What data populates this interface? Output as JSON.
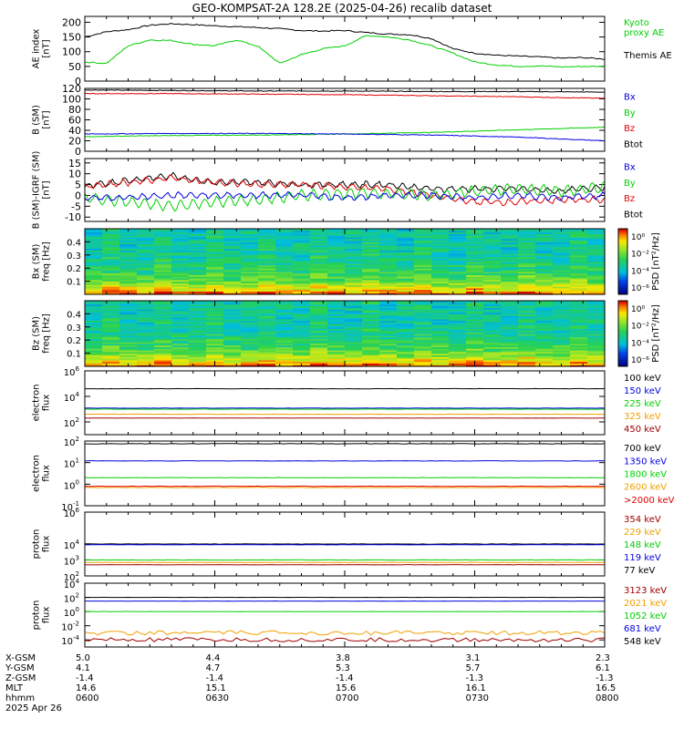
{
  "title": "GEO-KOMPSAT-2A 128.2E (2025-04-26) recalib dataset",
  "colors": {
    "black": "#000000",
    "blue": "#0000e0",
    "green": "#00d000",
    "red": "#e00000",
    "orange": "#f0a000",
    "darkred": "#a00000"
  },
  "chart_data": [
    {
      "type": "line",
      "name": "AE index",
      "ylabel": "AE index\n[nT]",
      "ylim": [
        0,
        220
      ],
      "yticks": [
        "200",
        "150",
        "100",
        "50",
        "0"
      ],
      "legend": [
        {
          "text": "Kyoto\nproxy AE",
          "color": "#00d000"
        },
        {
          "text": "Themis AE",
          "color": "#000000"
        }
      ],
      "x": [
        0,
        5,
        10,
        15,
        20,
        25,
        30,
        35,
        40,
        45,
        50,
        55,
        60,
        65,
        70,
        75,
        80,
        85,
        90,
        95,
        100,
        105,
        110,
        115,
        120
      ],
      "series": [
        {
          "name": "Themis AE",
          "color": "#000000",
          "values": [
            150,
            168,
            175,
            190,
            195,
            192,
            188,
            185,
            182,
            178,
            172,
            170,
            172,
            165,
            160,
            158,
            145,
            110,
            95,
            88,
            85,
            82,
            78,
            80,
            75
          ]
        },
        {
          "name": "Kyoto proxy AE",
          "color": "#00d000",
          "values": [
            65,
            60,
            120,
            140,
            138,
            125,
            120,
            140,
            118,
            60,
            90,
            110,
            120,
            155,
            150,
            140,
            120,
            95,
            65,
            55,
            50,
            52,
            48,
            50,
            50
          ]
        }
      ]
    },
    {
      "type": "line",
      "name": "B (SM)",
      "ylabel": "B (SM)\n[nT]",
      "ylim": [
        0,
        120
      ],
      "yticks": [
        "120",
        "100",
        "80",
        "60",
        "40",
        "20",
        "0"
      ],
      "legend": [
        {
          "text": "Bx",
          "color": "#0000e0"
        },
        {
          "text": "By",
          "color": "#00d000"
        },
        {
          "text": "Bz",
          "color": "#e00000"
        },
        {
          "text": "Btot",
          "color": "#000000"
        }
      ],
      "x": [
        0,
        20,
        40,
        60,
        80,
        100,
        120
      ],
      "series": [
        {
          "name": "Btot",
          "color": "#000000",
          "values": [
            117,
            116,
            115,
            115,
            114,
            114,
            113
          ]
        },
        {
          "name": "Bz",
          "color": "#e00000",
          "values": [
            110,
            110,
            109,
            108,
            106,
            104,
            101
          ]
        },
        {
          "name": "By",
          "color": "#00d000",
          "values": [
            28,
            30,
            31,
            33,
            36,
            41,
            46
          ]
        },
        {
          "name": "Bx",
          "color": "#0000e0",
          "values": [
            33,
            34,
            34,
            33,
            31,
            27,
            20
          ]
        }
      ]
    },
    {
      "type": "line",
      "name": "B (SM) - IGRF (SM)",
      "ylabel": "B (SM)-IGRF (SM)\n[nT]",
      "ylim": [
        -12,
        17
      ],
      "yticks": [
        "15",
        "10",
        "5",
        "0",
        "-5",
        "-10"
      ],
      "legend": [
        {
          "text": "Bx",
          "color": "#0000e0"
        },
        {
          "text": "By",
          "color": "#00d000"
        },
        {
          "text": "Bz",
          "color": "#e00000"
        },
        {
          "text": "Btot",
          "color": "#000000"
        }
      ],
      "x": [
        0,
        10,
        20,
        30,
        40,
        50,
        60,
        70,
        80,
        90,
        100,
        110,
        120
      ],
      "series": [
        {
          "name": "Btot",
          "color": "#000000",
          "values": [
            4,
            7,
            9,
            6,
            6,
            5,
            5,
            5,
            3,
            3,
            3,
            2,
            4
          ]
        },
        {
          "name": "Bz",
          "color": "#e00000",
          "values": [
            4,
            6,
            8,
            6,
            5,
            5,
            4,
            3,
            0,
            -3,
            -3,
            -2,
            -2
          ]
        },
        {
          "name": "By",
          "color": "#00d000",
          "values": [
            -1,
            -3,
            -5,
            -3,
            -2,
            0,
            1,
            1,
            0,
            2,
            3,
            2,
            4
          ]
        },
        {
          "name": "Bx",
          "color": "#0000e0",
          "values": [
            -1,
            -1,
            0,
            0,
            0,
            0,
            -1,
            0,
            0,
            -1,
            0,
            -1,
            0
          ]
        }
      ]
    },
    {
      "type": "heatmap",
      "name": "Bx (SM) PSD",
      "ylabel": "Bx (SM)\nfreq [Hz]",
      "ylim": [
        0,
        0.5
      ],
      "yticks": [
        "0.4",
        "0.3",
        "0.2",
        "0.1"
      ],
      "colorbar": {
        "label": "PSD [nT²/Hz]",
        "ticks": [
          "10⁰",
          "10⁻²",
          "10⁻⁴",
          "10⁻⁶"
        ]
      }
    },
    {
      "type": "heatmap",
      "name": "Bz (SM) PSD",
      "ylabel": "Bz (SM)\nfreq [Hz]",
      "ylim": [
        0,
        0.5
      ],
      "yticks": [
        "0.4",
        "0.3",
        "0.2",
        "0.1"
      ],
      "colorbar": {
        "label": "PSD [nT²/Hz]",
        "ticks": [
          "10⁰",
          "10⁻²",
          "10⁻⁴",
          "10⁻⁶"
        ]
      }
    },
    {
      "type": "line",
      "name": "electron flux low",
      "log": true,
      "ylabel": "electron\nflux",
      "ylim_exp": [
        1,
        6
      ],
      "yticks": [
        {
          "b": "10",
          "e": "6"
        },
        {
          "b": "10",
          "e": "4"
        },
        {
          "b": "10",
          "e": "2"
        }
      ],
      "legend": [
        {
          "text": "100 keV",
          "color": "#000000"
        },
        {
          "text": "150 keV",
          "color": "#0000e0"
        },
        {
          "text": "225 keV",
          "color": "#00d000"
        },
        {
          "text": "325 keV",
          "color": "#f0a000"
        },
        {
          "text": "450 keV",
          "color": "#a00000"
        }
      ],
      "series": [
        {
          "name": "100 keV",
          "color": "#000000",
          "values": [
            40000,
            40000
          ]
        },
        {
          "name": "150 keV",
          "color": "#0000e0",
          "values": [
            1200,
            1200
          ]
        },
        {
          "name": "225 keV",
          "color": "#00d000",
          "values": [
            1000,
            1000
          ]
        },
        {
          "name": "325 keV",
          "color": "#f0a000",
          "values": [
            400,
            400
          ]
        },
        {
          "name": "450 keV",
          "color": "#a00000",
          "values": [
            200,
            200
          ]
        }
      ]
    },
    {
      "type": "line",
      "name": "electron flux high",
      "log": true,
      "ylabel": "electron\nflux",
      "ylim_exp": [
        -1,
        2
      ],
      "yticks": [
        {
          "b": "10",
          "e": "2"
        },
        {
          "b": "10",
          "e": "1"
        },
        {
          "b": "10",
          "e": "0"
        },
        {
          "b": "10",
          "e": "-1"
        }
      ],
      "legend": [
        {
          "text": "700 keV",
          "color": "#000000"
        },
        {
          "text": "1350 keV",
          "color": "#0000e0"
        },
        {
          "text": "1800 keV",
          "color": "#00d000"
        },
        {
          "text": "2600 keV",
          "color": "#f0a000"
        },
        {
          "text": ">2000 keV",
          "color": "#e00000"
        }
      ],
      "series": [
        {
          "name": "700 keV",
          "color": "#000000",
          "values": [
            75,
            75
          ]
        },
        {
          "name": "1350 keV",
          "color": "#0000e0",
          "values": [
            12,
            12
          ]
        },
        {
          "name": "1800 keV",
          "color": "#00d000",
          "values": [
            2,
            2
          ]
        },
        {
          "name": "2600 keV",
          "color": "#f0a000",
          "values": [
            0.7,
            0.7
          ]
        },
        {
          "name": ">2000 keV",
          "color": "#e00000",
          "values": [
            0.8,
            0.8
          ]
        }
      ]
    },
    {
      "type": "line",
      "name": "proton flux low",
      "log": true,
      "ylabel": "proton\nflux",
      "ylim_exp": [
        2,
        6
      ],
      "yticks": [
        {
          "b": "10",
          "e": "6"
        },
        {
          "b": "10",
          "e": "4"
        },
        {
          "b": "10",
          "e": "3"
        },
        {
          "b": "10",
          "e": "2"
        }
      ],
      "legend": [
        {
          "text": "354 keV",
          "color": "#a00000"
        },
        {
          "text": "229 keV",
          "color": "#f0a000"
        },
        {
          "text": "148 keV",
          "color": "#00d000"
        },
        {
          "text": "119 keV",
          "color": "#0000e0"
        },
        {
          "text": "77 keV",
          "color": "#000000"
        }
      ],
      "series": [
        {
          "name": "77 keV",
          "color": "#000000",
          "values": [
            10000,
            10000
          ]
        },
        {
          "name": "119 keV",
          "color": "#0000e0",
          "values": [
            9000,
            9000
          ]
        },
        {
          "name": "148 keV",
          "color": "#00d000",
          "values": [
            1000,
            1000
          ]
        },
        {
          "name": "229 keV",
          "color": "#f0a000",
          "values": [
            700,
            700
          ]
        },
        {
          "name": "354 keV",
          "color": "#a00000",
          "values": [
            500,
            500
          ]
        }
      ]
    },
    {
      "type": "line",
      "name": "proton flux high",
      "log": true,
      "ylabel": "proton\nflux",
      "ylim_exp": [
        -5,
        4
      ],
      "yticks": [
        {
          "b": "10",
          "e": "4"
        },
        {
          "b": "10",
          "e": "2"
        },
        {
          "b": "10",
          "e": "0"
        },
        {
          "b": "10",
          "e": "-2"
        },
        {
          "b": "10",
          "e": "-4"
        }
      ],
      "legend": [
        {
          "text": "3123 keV",
          "color": "#a00000"
        },
        {
          "text": "2021 keV",
          "color": "#f0a000"
        },
        {
          "text": "1052 keV",
          "color": "#00d000"
        },
        {
          "text": "681 keV",
          "color": "#0000e0"
        },
        {
          "text": "548 keV",
          "color": "#000000"
        }
      ],
      "series": [
        {
          "name": "548 keV",
          "color": "#000000",
          "values": [
            100,
            100
          ]
        },
        {
          "name": "681 keV",
          "color": "#0000e0",
          "values": [
            30,
            30
          ]
        },
        {
          "name": "1052 keV",
          "color": "#00d000",
          "values": [
            1,
            1
          ]
        },
        {
          "name": "2021 keV",
          "color": "#f0a000",
          "values": [
            0.001,
            0.001
          ]
        },
        {
          "name": "3123 keV",
          "color": "#a00000",
          "values": [
            0.0001,
            0.0001
          ]
        }
      ]
    }
  ],
  "ephemeris": {
    "labels": [
      "X-GSM",
      "Y-GSM",
      "Z-GSM",
      "MLT",
      "hhmm",
      "2025 Apr 26"
    ],
    "columns": [
      [
        "5.0",
        "4.1",
        "-1.4",
        "14.6",
        "0600"
      ],
      [
        "4.4",
        "4.7",
        "-1.4",
        "15.1",
        "0630"
      ],
      [
        "3.8",
        "5.3",
        "-1.4",
        "15.6",
        "0700"
      ],
      [
        "3.1",
        "5.7",
        "-1.3",
        "16.1",
        "0730"
      ],
      [
        "2.3",
        "6.1",
        "-1.3",
        "16.5",
        "0800"
      ]
    ]
  }
}
